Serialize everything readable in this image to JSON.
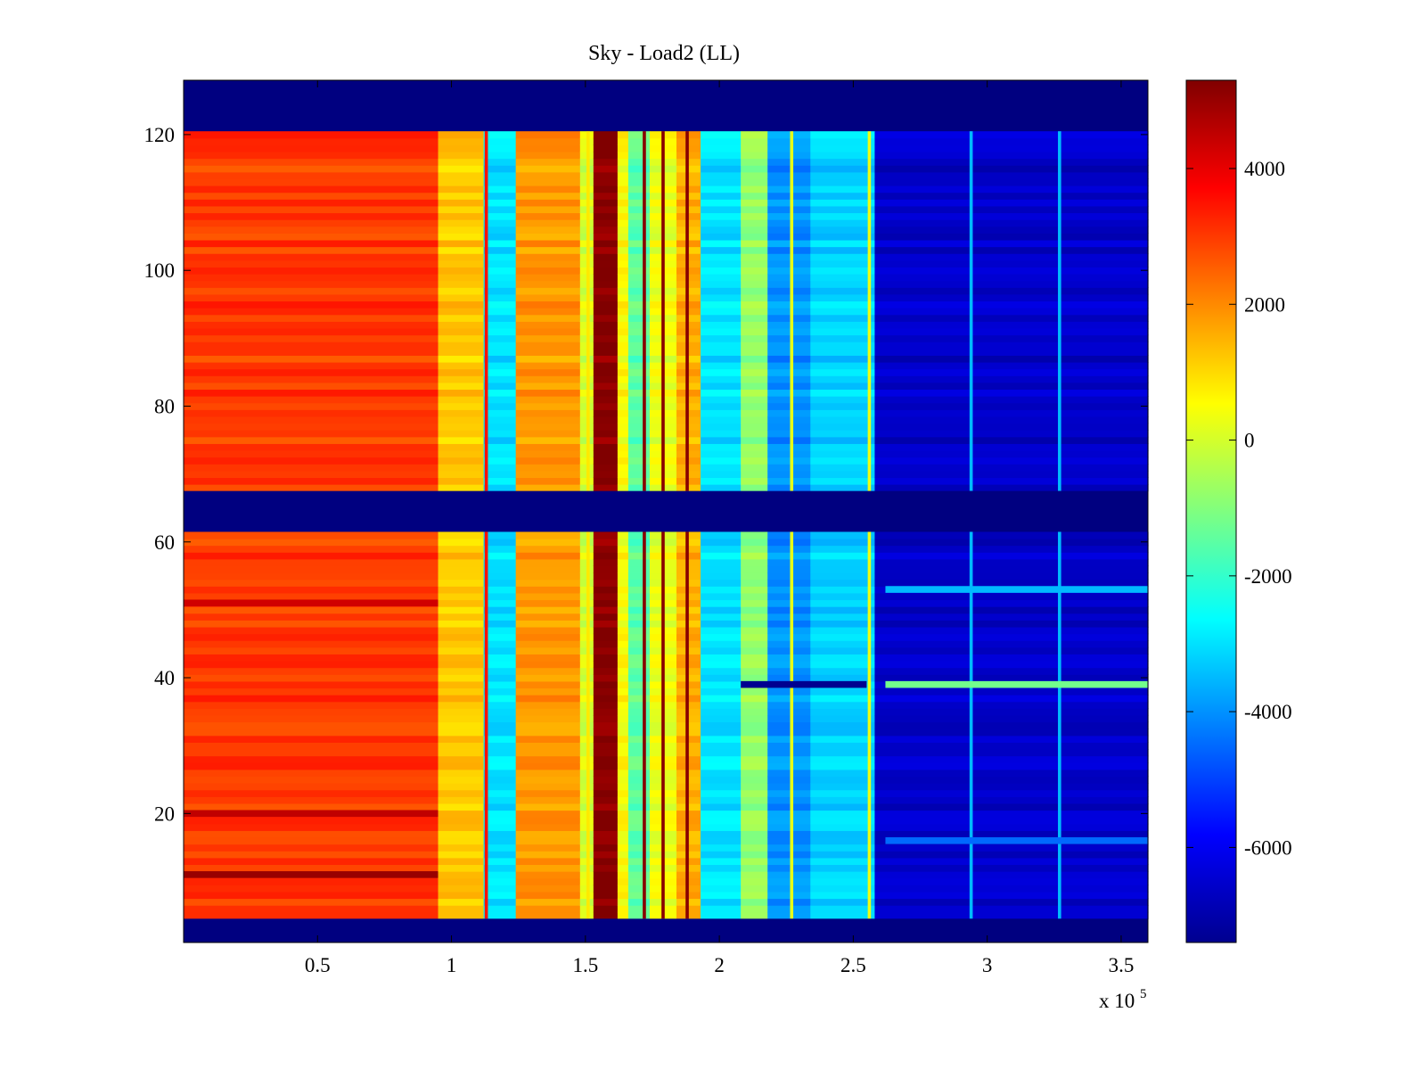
{
  "chart_data": {
    "type": "heatmap",
    "title": "Sky - Load2 (LL)",
    "xlabel": "",
    "ylabel": "",
    "x_multiplier_label": {
      "base": "x 10",
      "exponent": "5"
    },
    "xlim": [
      0,
      3.6
    ],
    "ylim": [
      1,
      128
    ],
    "x_ticks": [
      0.5,
      1,
      1.5,
      2,
      2.5,
      3,
      3.5
    ],
    "x_tick_labels": [
      "0.5",
      "1",
      "1.5",
      "2",
      "2.5",
      "3",
      "3.5"
    ],
    "y_ticks": [
      20,
      40,
      60,
      80,
      100,
      120
    ],
    "y_tick_labels": [
      "20",
      "40",
      "60",
      "80",
      "100",
      "120"
    ],
    "colorbar": {
      "range": [
        -7400,
        5300
      ],
      "ticks": [
        -6000,
        -4000,
        -2000,
        0,
        2000,
        4000
      ],
      "tick_labels": [
        "-6000",
        "-4000",
        "-2000",
        "0",
        "2000",
        "4000"
      ],
      "colormap": "jet"
    },
    "empty_rows": {
      "ranges": [
        [
          1,
          4
        ],
        [
          62,
          67
        ],
        [
          121,
          128
        ]
      ],
      "value": -7400
    },
    "column_segments": [
      {
        "x0": 0.0,
        "x1": 0.95,
        "value": 3000
      },
      {
        "x0": 0.95,
        "x1": 1.12,
        "value": 1200
      },
      {
        "x0": 1.12,
        "x1": 1.24,
        "value": -3000
      },
      {
        "x0": 1.24,
        "x1": 1.48,
        "value": 1800
      },
      {
        "x0": 1.48,
        "x1": 1.53,
        "value": 0
      },
      {
        "x0": 1.53,
        "x1": 1.62,
        "value": 5200
      },
      {
        "x0": 1.62,
        "x1": 1.66,
        "value": 500
      },
      {
        "x0": 1.66,
        "x1": 1.74,
        "value": -1500
      },
      {
        "x0": 1.74,
        "x1": 1.84,
        "value": 300
      },
      {
        "x0": 1.84,
        "x1": 1.93,
        "value": 1500
      },
      {
        "x0": 1.93,
        "x1": 2.08,
        "value": -3000
      },
      {
        "x0": 2.08,
        "x1": 2.18,
        "value": -800
      },
      {
        "x0": 2.18,
        "x1": 2.34,
        "value": -4000
      },
      {
        "x0": 2.34,
        "x1": 2.58,
        "value": -3200
      },
      {
        "x0": 2.58,
        "x1": 3.6,
        "value": -6500
      }
    ],
    "strong_columns": [
      {
        "x": 1.13,
        "value": 3500
      },
      {
        "x": 1.51,
        "value": 800
      },
      {
        "x": 1.72,
        "value": 5200
      },
      {
        "x": 1.79,
        "value": 5200
      },
      {
        "x": 1.88,
        "value": 5200
      },
      {
        "x": 2.27,
        "value": 200
      },
      {
        "x": 2.56,
        "value": 300
      },
      {
        "x": 2.94,
        "value": -3500
      },
      {
        "x": 3.27,
        "value": -3500
      }
    ],
    "row_bands": [
      {
        "y": 39,
        "value": -1200,
        "x0": 2.62,
        "x1": 3.6
      },
      {
        "y": 39,
        "value": -7200,
        "x0": 2.08,
        "x1": 2.55
      },
      {
        "y": 53,
        "value": -3500,
        "x0": 2.62,
        "x1": 3.6
      },
      {
        "y": 16,
        "value": -4500,
        "x0": 2.62,
        "x1": 3.6
      },
      {
        "y": 11,
        "value": 5000,
        "x0": 0.0,
        "x1": 0.95
      },
      {
        "y": 20,
        "value": 4500,
        "x0": 0.0,
        "x1": 0.95
      },
      {
        "y": 51,
        "value": 4300,
        "x0": 0.0,
        "x1": 0.95
      }
    ]
  }
}
